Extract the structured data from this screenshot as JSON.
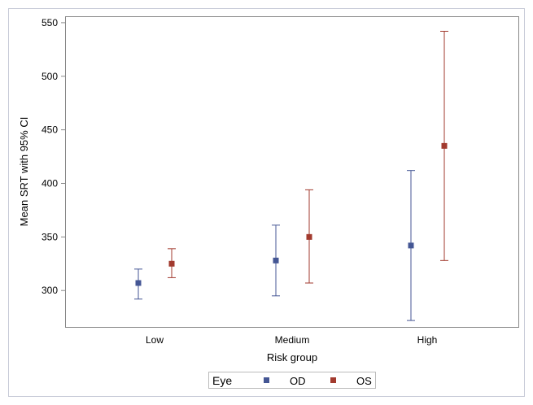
{
  "chart_data": {
    "type": "scatter",
    "title": "",
    "xlabel": "Risk group",
    "ylabel": "Mean SRT with 95% CI",
    "categories": [
      "Low",
      "Medium",
      "High"
    ],
    "yticks": [
      300,
      350,
      400,
      450,
      500,
      550
    ],
    "ylim": [
      266,
      556
    ],
    "grid": false,
    "legend": {
      "title": "Eye",
      "placement": "bottom"
    },
    "series": [
      {
        "name": "OD",
        "color": "#445694",
        "mean": [
          307,
          328,
          342
        ],
        "lower": [
          292,
          295,
          272
        ],
        "upper": [
          320,
          361,
          412
        ]
      },
      {
        "name": "OS",
        "color": "#a23a2e",
        "mean": [
          325,
          350,
          435
        ],
        "lower": [
          312,
          307,
          328
        ],
        "upper": [
          339,
          394,
          542
        ]
      }
    ]
  }
}
